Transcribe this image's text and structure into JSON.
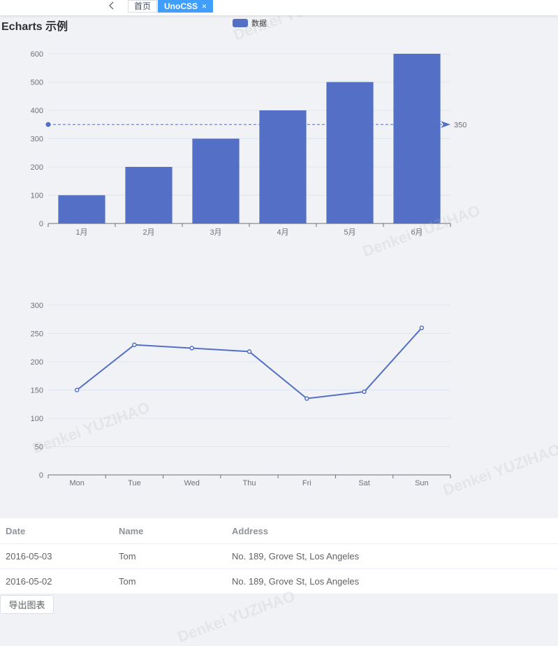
{
  "tabs": {
    "home_label": "首页",
    "active_label": "UnoCSS",
    "close_glyph": "×"
  },
  "page": {
    "title": "Echarts 示例"
  },
  "watermark_text": "Denkei YUZIHAO",
  "chart_data": [
    {
      "type": "bar",
      "categories": [
        "1月",
        "2月",
        "3月",
        "4月",
        "5月",
        "6月"
      ],
      "series": [
        {
          "name": "数据",
          "values": [
            100,
            200,
            300,
            400,
            500,
            600
          ]
        }
      ],
      "ylim": [
        0,
        600
      ],
      "yticks": [
        0,
        100,
        200,
        300,
        400,
        500,
        600
      ],
      "markline": {
        "value": 350,
        "label": "350"
      },
      "legend": "top-center",
      "grid": true,
      "color": "#5470c6"
    },
    {
      "type": "line",
      "categories": [
        "Mon",
        "Tue",
        "Wed",
        "Thu",
        "Fri",
        "Sat",
        "Sun"
      ],
      "series": [
        {
          "values": [
            150,
            230,
            224,
            218,
            135,
            147,
            260
          ]
        }
      ],
      "ylim": [
        0,
        300
      ],
      "yticks": [
        0,
        50,
        100,
        150,
        200,
        250,
        300
      ],
      "grid": true,
      "color": "#5470c6"
    }
  ],
  "table": {
    "headers": {
      "date": "Date",
      "name": "Name",
      "address": "Address"
    },
    "rows": [
      {
        "date": "2016-05-03",
        "name": "Tom",
        "address": "No. 189, Grove St, Los Angeles"
      },
      {
        "date": "2016-05-02",
        "name": "Tom",
        "address": "No. 189, Grove St, Los Angeles"
      }
    ]
  },
  "export_button": {
    "label": "导出图表"
  }
}
